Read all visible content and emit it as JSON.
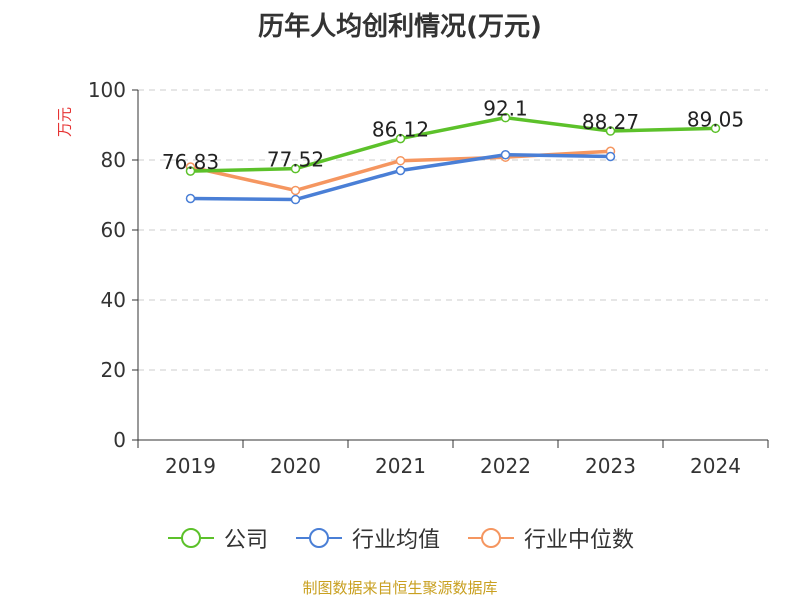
{
  "title": "历年人均创利情况(万元)",
  "source": "制图数据来自恒生聚源数据库",
  "colors": {
    "company": "#5cc12a",
    "industry_avg": "#4a7fd6",
    "industry_median": "#f59660",
    "axis": "#333333",
    "grid": "#cccccc",
    "ylabel": "#e63232",
    "source": "#c9a020"
  },
  "chart_data": {
    "type": "line",
    "title": "历年人均创利情况(万元)",
    "ylabel": "万元",
    "xlabel": "",
    "categories": [
      "2019",
      "2020",
      "2021",
      "2022",
      "2023",
      "2024"
    ],
    "ylim": [
      0,
      100
    ],
    "yticks": [
      0,
      20,
      40,
      60,
      80,
      100
    ],
    "grid": true,
    "legend_position": "bottom",
    "series": [
      {
        "name": "公司",
        "key": "company",
        "values": [
          76.83,
          77.52,
          86.12,
          92.1,
          88.27,
          89.05
        ],
        "labels": [
          "76.83",
          "77.52",
          "86.12",
          "92.1",
          "88.27",
          "89.05"
        ]
      },
      {
        "name": "行业均值",
        "key": "industry_avg",
        "values": [
          69.0,
          68.7,
          77.0,
          81.5,
          81.0,
          null
        ]
      },
      {
        "name": "行业中位数",
        "key": "industry_median",
        "values": [
          78.0,
          71.3,
          79.8,
          80.8,
          82.5,
          null
        ]
      }
    ]
  }
}
